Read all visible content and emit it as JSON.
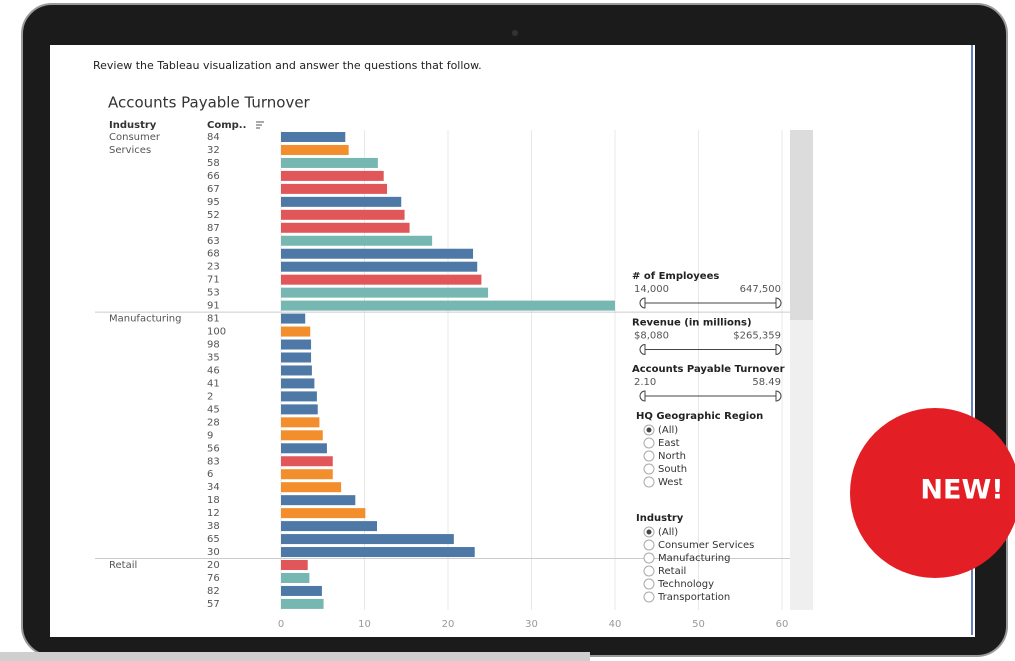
{
  "instruction": "Review the Tableau visualization and answer the questions that follow.",
  "chart_data": {
    "type": "bar",
    "orientation": "horizontal",
    "title": "Accounts Payable Turnover",
    "column_headers": [
      "Industry",
      "Comp.."
    ],
    "groups": [
      {
        "name": "Consumer Services",
        "categories": [
          "84",
          "32",
          "58",
          "66",
          "67",
          "95",
          "52",
          "87",
          "63",
          "68",
          "23",
          "71",
          "53",
          "91"
        ],
        "values": [
          7.7,
          8.1,
          11.6,
          12.3,
          12.7,
          14.4,
          14.8,
          15.4,
          18.1,
          23.0,
          23.5,
          24.0,
          24.8,
          40.0
        ],
        "colors": [
          "#4e79a7",
          "#f28e2b",
          "#76b7b2",
          "#e15759",
          "#e15759",
          "#4e79a7",
          "#e15759",
          "#e15759",
          "#76b7b2",
          "#4e79a7",
          "#4e79a7",
          "#e15759",
          "#76b7b2",
          "#76b7b2"
        ]
      },
      {
        "name": "Manufacturing",
        "categories": [
          "81",
          "100",
          "98",
          "35",
          "46",
          "41",
          "2",
          "45",
          "28",
          "9",
          "56",
          "83",
          "6",
          "34",
          "18",
          "12",
          "38",
          "65",
          "30"
        ],
        "values": [
          2.9,
          3.5,
          3.6,
          3.6,
          3.7,
          4.0,
          4.3,
          4.4,
          4.6,
          5.0,
          5.5,
          6.2,
          6.2,
          7.2,
          8.9,
          10.1,
          11.5,
          20.7,
          23.2
        ],
        "colors": [
          "#4e79a7",
          "#f28e2b",
          "#4e79a7",
          "#4e79a7",
          "#4e79a7",
          "#4e79a7",
          "#4e79a7",
          "#4e79a7",
          "#f28e2b",
          "#f28e2b",
          "#4e79a7",
          "#e15759",
          "#f28e2b",
          "#f28e2b",
          "#4e79a7",
          "#f28e2b",
          "#4e79a7",
          "#4e79a7",
          "#4e79a7"
        ]
      },
      {
        "name": "Retail",
        "categories": [
          "20",
          "76",
          "82",
          "57"
        ],
        "values": [
          3.2,
          3.4,
          4.9,
          5.1
        ],
        "colors": [
          "#e15759",
          "#76b7b2",
          "#4e79a7",
          "#76b7b2"
        ]
      }
    ],
    "xlim": [
      0,
      60
    ],
    "xticks": [
      0,
      10,
      20,
      30,
      40,
      50,
      60
    ],
    "grid": true
  },
  "filters": {
    "ranges": [
      {
        "title": "# of Employees",
        "min": "14,000",
        "max": "647,500"
      },
      {
        "title": "Revenue (in millions)",
        "min": "$8,080",
        "max": "$265,359"
      },
      {
        "title": "Accounts Payable Turnover",
        "min": "2.10",
        "max": "58.49"
      }
    ],
    "lists": [
      {
        "title": "HQ Geographic Region",
        "options": [
          "(All)",
          "East",
          "North",
          "South",
          "West"
        ]
      },
      {
        "title": "Industry",
        "options": [
          "(All)",
          "Consumer Services",
          "Manufacturing",
          "Retail",
          "Technology",
          "Transportation"
        ]
      }
    ]
  },
  "badge": "NEW!"
}
